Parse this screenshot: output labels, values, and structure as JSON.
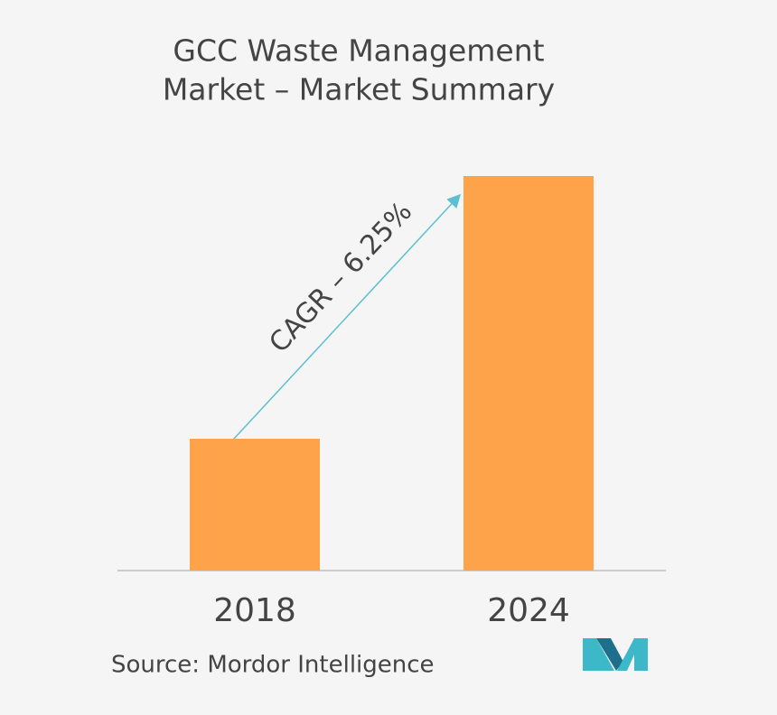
{
  "chart_data": {
    "type": "bar",
    "title": [
      "GCC Waste Management",
      "Market – Market Summary"
    ],
    "categories": [
      "2018",
      "2024"
    ],
    "values": [
      146,
      437
    ],
    "color": "#ffa34a",
    "ylim": [
      0,
      450
    ],
    "annotation": "CAGR – 6.25%",
    "source": "Source: Mordor Intelligence"
  }
}
